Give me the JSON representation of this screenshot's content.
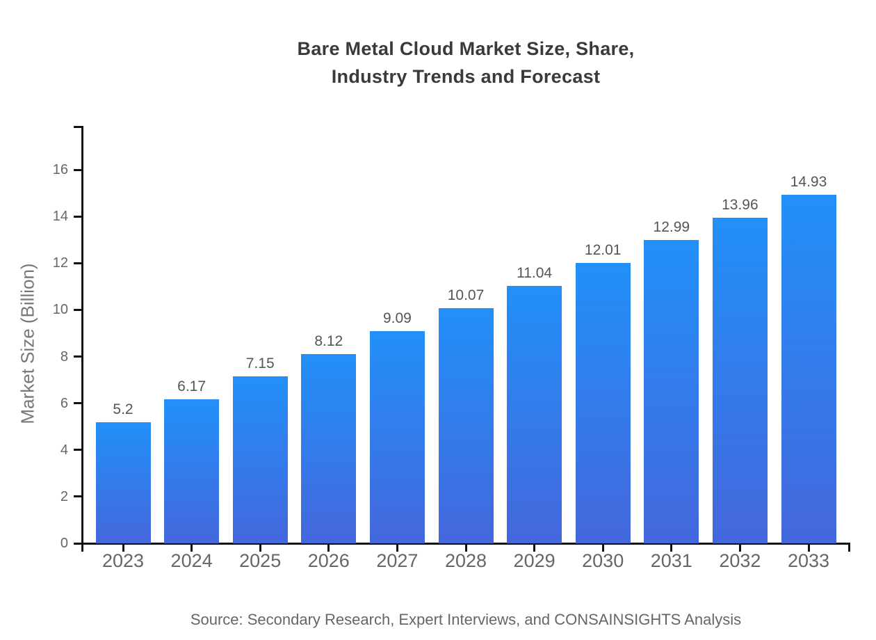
{
  "chart_data": {
    "type": "bar",
    "title": "Bare Metal Cloud Market Size, Share,\nIndustry Trends and Forecast",
    "xlabel": "",
    "ylabel": "Market Size (Billion)",
    "categories": [
      "2023",
      "2024",
      "2025",
      "2026",
      "2027",
      "2028",
      "2029",
      "2030",
      "2031",
      "2032",
      "2033"
    ],
    "values": [
      5.2,
      6.17,
      7.15,
      8.12,
      9.09,
      10.07,
      11.04,
      12.01,
      12.99,
      13.96,
      14.93
    ],
    "value_labels": [
      "5.2",
      "6.17",
      "7.15",
      "8.12",
      "9.09",
      "10.07",
      "11.04",
      "12.01",
      "12.99",
      "13.96",
      "14.93"
    ],
    "yticks": [
      0,
      2,
      4,
      6,
      8,
      10,
      12,
      14,
      16
    ],
    "ylim": [
      0,
      17.85
    ],
    "grid": false,
    "legend": "none",
    "source": "Source: Secondary Research, Expert Interviews, and CONSAINSIGHTS Analysis",
    "colors": {
      "bar_gradient_top": "#2290f8",
      "bar_gradient_bottom": "#4467dc",
      "axis": "#111111",
      "x_tick_label": "#666666",
      "y_tick_label": "#666666",
      "data_label": "#555555",
      "title": "#3a3a3a",
      "ylabel": "#777777",
      "source": "#666666",
      "background": "#ffffff"
    }
  }
}
